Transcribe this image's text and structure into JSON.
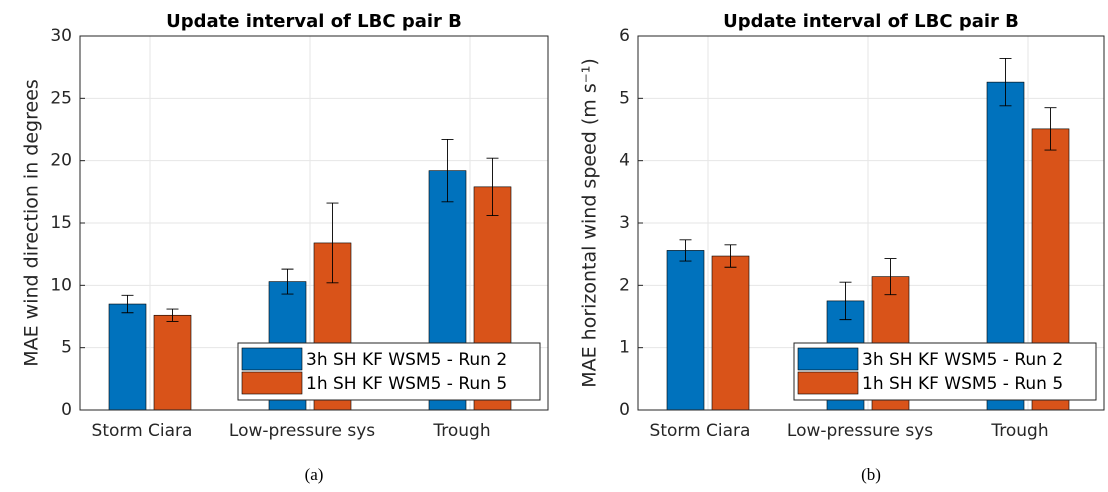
{
  "chart_data": [
    {
      "type": "bar",
      "title": "Update interval of LBC pair B",
      "ylabel": "MAE wind direction in degrees",
      "categories": [
        "Storm Ciara",
        "Low-pressure sys",
        "Trough"
      ],
      "series": [
        {
          "name": "3h SH KF WSM5 - Run 2",
          "color": "#0072BD",
          "values": [
            8.5,
            10.3,
            19.2
          ],
          "errors": [
            0.7,
            1.0,
            2.5
          ]
        },
        {
          "name": "1h SH KF WSM5 - Run 5",
          "color": "#D95319",
          "values": [
            7.6,
            13.4,
            17.9
          ],
          "errors": [
            0.5,
            3.2,
            2.3
          ]
        }
      ],
      "ylim": [
        0,
        30
      ],
      "yticks": [
        0,
        5,
        10,
        15,
        20,
        25,
        30
      ],
      "grid": true,
      "legend": "southeast",
      "caption": "(a)"
    },
    {
      "type": "bar",
      "title": "Update interval of LBC pair B",
      "ylabel": "MAE horizontal wind speed (m s⁻¹)",
      "categories": [
        "Storm Ciara",
        "Low-pressure sys",
        "Trough"
      ],
      "series": [
        {
          "name": "3h SH KF WSM5 - Run 2",
          "color": "#0072BD",
          "values": [
            2.56,
            1.75,
            5.26
          ],
          "errors": [
            0.17,
            0.3,
            0.38
          ]
        },
        {
          "name": "1h SH KF WSM5 - Run 5",
          "color": "#D95319",
          "values": [
            2.47,
            2.14,
            4.51
          ],
          "errors": [
            0.18,
            0.29,
            0.34
          ]
        }
      ],
      "ylim": [
        0,
        6
      ],
      "yticks": [
        0,
        1,
        2,
        3,
        4,
        5,
        6
      ],
      "grid": true,
      "legend": "southeast",
      "caption": "(b)"
    }
  ]
}
